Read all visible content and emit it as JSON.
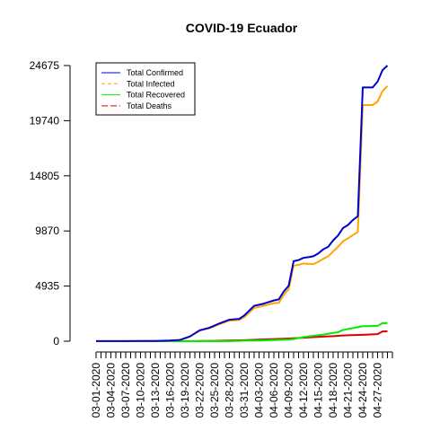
{
  "chart_data": {
    "type": "line",
    "title": "COVID-19 Ecuador",
    "xlabel": "",
    "ylabel": "",
    "ylim": [
      0,
      24675
    ],
    "yticks": [
      0,
      4935,
      9870,
      14805,
      19740,
      24675
    ],
    "ytick_labels": [
      "0",
      "4935",
      "9870",
      "14805",
      "19740",
      "24675"
    ],
    "x_start": "2020-03-01",
    "x_end": "2020-04-30",
    "x_tick_labels": [
      "03-01-2020",
      "03-04-2020",
      "03-07-2020",
      "03-10-2020",
      "03-13-2020",
      "03-16-2020",
      "03-19-2020",
      "03-22-2020",
      "03-25-2020",
      "03-28-2020",
      "03-31-2020",
      "04-03-2020",
      "04-06-2020",
      "04-09-2020",
      "04-12-2020",
      "04-15-2020",
      "04-18-2020",
      "04-21-2020",
      "04-24-2020",
      "04-27-2020"
    ],
    "legend_position": "top-left",
    "grid": false,
    "series": [
      {
        "name": "Total Confirmed",
        "color": "#0000cd",
        "dash": "solid",
        "values": [
          [
            "2020-03-01",
            6
          ],
          [
            "2020-03-04",
            10
          ],
          [
            "2020-03-07",
            14
          ],
          [
            "2020-03-10",
            17
          ],
          [
            "2020-03-13",
            23
          ],
          [
            "2020-03-16",
            58
          ],
          [
            "2020-03-18",
            111
          ],
          [
            "2020-03-20",
            426
          ],
          [
            "2020-03-22",
            981
          ],
          [
            "2020-03-24",
            1211
          ],
          [
            "2020-03-26",
            1597
          ],
          [
            "2020-03-28",
            1924
          ],
          [
            "2020-03-30",
            2000
          ],
          [
            "2020-03-31",
            2302
          ],
          [
            "2020-04-02",
            3163
          ],
          [
            "2020-04-04",
            3368
          ],
          [
            "2020-04-06",
            3646
          ],
          [
            "2020-04-07",
            3747
          ],
          [
            "2020-04-08",
            4450
          ],
          [
            "2020-04-09",
            4965
          ],
          [
            "2020-04-10",
            7161
          ],
          [
            "2020-04-11",
            7257
          ],
          [
            "2020-04-12",
            7466
          ],
          [
            "2020-04-13",
            7529
          ],
          [
            "2020-04-14",
            7603
          ],
          [
            "2020-04-15",
            7858
          ],
          [
            "2020-04-16",
            8225
          ],
          [
            "2020-04-17",
            8450
          ],
          [
            "2020-04-18",
            9022
          ],
          [
            "2020-04-19",
            9468
          ],
          [
            "2020-04-20",
            10128
          ],
          [
            "2020-04-21",
            10398
          ],
          [
            "2020-04-22",
            10850
          ],
          [
            "2020-04-23",
            11183
          ],
          [
            "2020-04-24",
            22719
          ],
          [
            "2020-04-25",
            22719
          ],
          [
            "2020-04-26",
            22719
          ],
          [
            "2020-04-27",
            23240
          ],
          [
            "2020-04-28",
            24258
          ],
          [
            "2020-04-29",
            24675
          ]
        ]
      },
      {
        "name": "Total Infected",
        "color": "#ffa500",
        "dash": "dashed",
        "values": [
          [
            "2020-03-01",
            6
          ],
          [
            "2020-03-04",
            10
          ],
          [
            "2020-03-07",
            14
          ],
          [
            "2020-03-10",
            17
          ],
          [
            "2020-03-13",
            22
          ],
          [
            "2020-03-16",
            56
          ],
          [
            "2020-03-18",
            107
          ],
          [
            "2020-03-20",
            417
          ],
          [
            "2020-03-22",
            949
          ],
          [
            "2020-03-24",
            1166
          ],
          [
            "2020-03-26",
            1532
          ],
          [
            "2020-03-28",
            1837
          ],
          [
            "2020-03-30",
            1910
          ],
          [
            "2020-03-31",
            2153
          ],
          [
            "2020-04-02",
            2970
          ],
          [
            "2020-04-04",
            3178
          ],
          [
            "2020-04-06",
            3403
          ],
          [
            "2020-04-07",
            3435
          ],
          [
            "2020-04-08",
            4139
          ],
          [
            "2020-04-09",
            4662
          ],
          [
            "2020-04-10",
            6766
          ],
          [
            "2020-04-11",
            6837
          ],
          [
            "2020-04-12",
            6956
          ],
          [
            "2020-04-13",
            6920
          ],
          [
            "2020-04-14",
            6900
          ],
          [
            "2020-04-15",
            7103
          ],
          [
            "2020-04-16",
            7373
          ],
          [
            "2020-04-17",
            7603
          ],
          [
            "2020-04-18",
            8034
          ],
          [
            "2020-04-19",
            8451
          ],
          [
            "2020-04-20",
            8945
          ],
          [
            "2020-04-21",
            9210
          ],
          [
            "2020-04-22",
            9497
          ],
          [
            "2020-04-23",
            9784
          ],
          [
            "2020-04-24",
            21140
          ],
          [
            "2020-04-25",
            21140
          ],
          [
            "2020-04-26",
            21140
          ],
          [
            "2020-04-27",
            21450
          ],
          [
            "2020-04-28",
            22380
          ],
          [
            "2020-04-29",
            22850
          ]
        ]
      },
      {
        "name": "Total Recovered",
        "color": "#00ee00",
        "dash": "solid",
        "values": [
          [
            "2020-03-01",
            0
          ],
          [
            "2020-03-10",
            0
          ],
          [
            "2020-03-20",
            3
          ],
          [
            "2020-03-28",
            3
          ],
          [
            "2020-03-31",
            54
          ],
          [
            "2020-04-03",
            58
          ],
          [
            "2020-04-06",
            100
          ],
          [
            "2020-04-09",
            150
          ],
          [
            "2020-04-10",
            192
          ],
          [
            "2020-04-12",
            368
          ],
          [
            "2020-04-14",
            488
          ],
          [
            "2020-04-16",
            593
          ],
          [
            "2020-04-18",
            747
          ],
          [
            "2020-04-19",
            797
          ],
          [
            "2020-04-20",
            1009
          ],
          [
            "2020-04-22",
            1173
          ],
          [
            "2020-04-24",
            1349
          ],
          [
            "2020-04-25",
            1349
          ],
          [
            "2020-04-26",
            1366
          ],
          [
            "2020-04-27",
            1380
          ],
          [
            "2020-04-28",
            1619
          ],
          [
            "2020-04-29",
            1619
          ]
        ]
      },
      {
        "name": "Total Deaths",
        "color": "#dd0000",
        "dash": "longdash",
        "values": [
          [
            "2020-03-01",
            0
          ],
          [
            "2020-03-13",
            2
          ],
          [
            "2020-03-16",
            2
          ],
          [
            "2020-03-19",
            3
          ],
          [
            "2020-03-22",
            18
          ],
          [
            "2020-03-25",
            34
          ],
          [
            "2020-03-28",
            62
          ],
          [
            "2020-03-31",
            93
          ],
          [
            "2020-04-03",
            145
          ],
          [
            "2020-04-06",
            191
          ],
          [
            "2020-04-09",
            242
          ],
          [
            "2020-04-12",
            315
          ],
          [
            "2020-04-15",
            388
          ],
          [
            "2020-04-18",
            456
          ],
          [
            "2020-04-21",
            537
          ],
          [
            "2020-04-24",
            576
          ],
          [
            "2020-04-27",
            633
          ],
          [
            "2020-04-28",
            871
          ],
          [
            "2020-04-29",
            883
          ]
        ]
      }
    ]
  }
}
